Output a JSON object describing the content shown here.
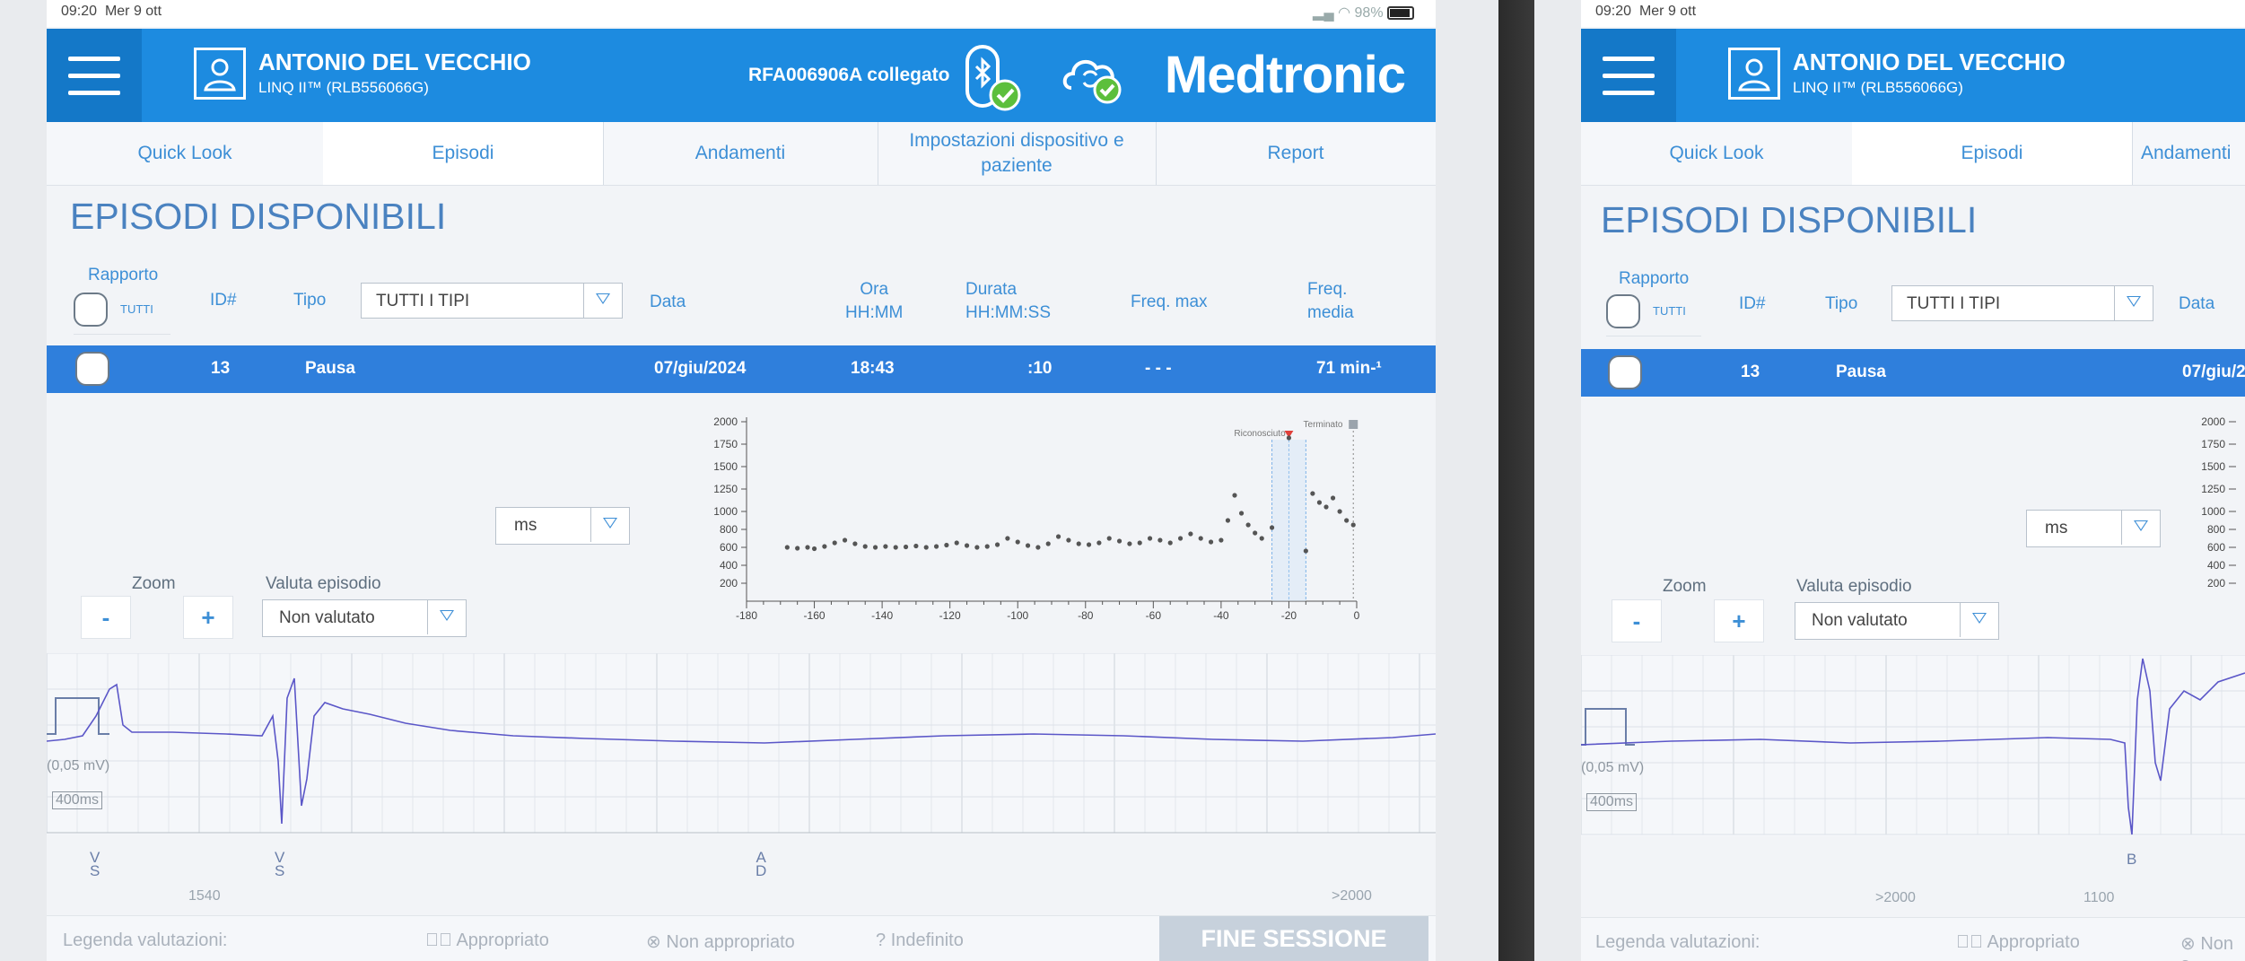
{
  "status": {
    "time": "09:20",
    "date": "Mer 9 ott",
    "battery": "98%"
  },
  "patient": {
    "name": "ANTONIO DEL VECCHIO",
    "device": "LINQ II™ (RLB556066G)"
  },
  "connection": "RFA006906A collegato",
  "brand": "Medtronic",
  "tabs": [
    "Quick Look",
    "Episodi",
    "Andamenti",
    "Impostazioni dispositivo e paziente",
    "Report"
  ],
  "page_title": "EPISODI DISPONIBILI",
  "columns": {
    "rapporto": "Rapporto",
    "tutti": "TUTTI",
    "id": "ID#",
    "tipo": "Tipo",
    "tipo_select": "TUTTI I TIPI",
    "data": "Data",
    "ora": "Ora",
    "ora_unit": "HH:MM",
    "durata": "Durata",
    "durata_unit": "HH:MM:SS",
    "freq_max": "Freq. max",
    "freq_media": "Freq.",
    "freq_media_2": "media"
  },
  "episode": {
    "id": "13",
    "tipo": "Pausa",
    "data": "07/giu/2024",
    "ora": "18:43",
    "durata": ":10",
    "freq_max": "- - -",
    "freq_media": "71 min-¹"
  },
  "unit_select": "ms",
  "zoom": {
    "label": "Zoom",
    "minus": "-",
    "plus": "+"
  },
  "valuta": {
    "label": "Valuta episodio",
    "value": "Non valutato"
  },
  "chart_data": {
    "type": "scatter",
    "x_ticks": [
      "-180",
      "-160",
      "-140",
      "-120",
      "-100",
      "-80",
      "-60",
      "-40",
      "-20",
      "0"
    ],
    "y_ticks": [
      "2000",
      "1750",
      "1500",
      "1250",
      "1000",
      "800",
      "600",
      "400",
      "200"
    ],
    "annotations": {
      "riconosciuto": "Riconosciuto",
      "terminato": "Terminato"
    },
    "xlim": [
      -180,
      0
    ],
    "y_points_note": "",
    "points": [
      [
        -168,
        600
      ],
      [
        -165,
        590
      ],
      [
        -162,
        600
      ],
      [
        -160,
        585
      ],
      [
        -157,
        610
      ],
      [
        -154,
        650
      ],
      [
        -151,
        680
      ],
      [
        -148,
        640
      ],
      [
        -145,
        610
      ],
      [
        -142,
        600
      ],
      [
        -139,
        610
      ],
      [
        -136,
        600
      ],
      [
        -133,
        605
      ],
      [
        -130,
        615
      ],
      [
        -127,
        600
      ],
      [
        -124,
        610
      ],
      [
        -121,
        625
      ],
      [
        -118,
        650
      ],
      [
        -115,
        620
      ],
      [
        -112,
        600
      ],
      [
        -109,
        610
      ],
      [
        -106,
        630
      ],
      [
        -103,
        700
      ],
      [
        -100,
        660
      ],
      [
        -97,
        620
      ],
      [
        -94,
        600
      ],
      [
        -91,
        640
      ],
      [
        -88,
        720
      ],
      [
        -85,
        680
      ],
      [
        -82,
        640
      ],
      [
        -79,
        630
      ],
      [
        -76,
        650
      ],
      [
        -73,
        700
      ],
      [
        -70,
        670
      ],
      [
        -67,
        640
      ],
      [
        -64,
        650
      ],
      [
        -61,
        700
      ],
      [
        -58,
        680
      ],
      [
        -55,
        650
      ],
      [
        -52,
        700
      ],
      [
        -49,
        750
      ],
      [
        -46,
        700
      ],
      [
        -43,
        660
      ],
      [
        -40,
        680
      ],
      [
        -38,
        900
      ],
      [
        -36,
        1180
      ],
      [
        -34,
        980
      ],
      [
        -32,
        850
      ],
      [
        -30,
        760
      ],
      [
        -28,
        700
      ],
      [
        -25,
        820
      ],
      [
        -20,
        1820
      ],
      [
        -15,
        560
      ],
      [
        -13,
        1200
      ],
      [
        -11,
        1100
      ],
      [
        -9,
        1050
      ],
      [
        -7,
        1150
      ],
      [
        -5,
        1000
      ],
      [
        -3,
        900
      ],
      [
        -1,
        850
      ]
    ]
  },
  "ecg": {
    "scale": "(0,05 mV)",
    "time_scale": "400ms",
    "markers_left": [
      {
        "top": "V",
        "bottom": "S"
      },
      {
        "top": "V",
        "bottom": "S"
      },
      {
        "top": "A",
        "bottom": "D"
      }
    ],
    "rr_left": [
      "1540",
      ">2000"
    ],
    "markers_right": [
      "B"
    ],
    "rr_right": [
      ">2000",
      "1100"
    ]
  },
  "legend": {
    "label": "Legenda valutazioni:",
    "appropriato": "Appropriato",
    "non_appropriato": "Non appropriato",
    "indefinito": "Indefinito",
    "non_short": "Non a"
  },
  "fine_sessione": "FINE SESSIONE"
}
